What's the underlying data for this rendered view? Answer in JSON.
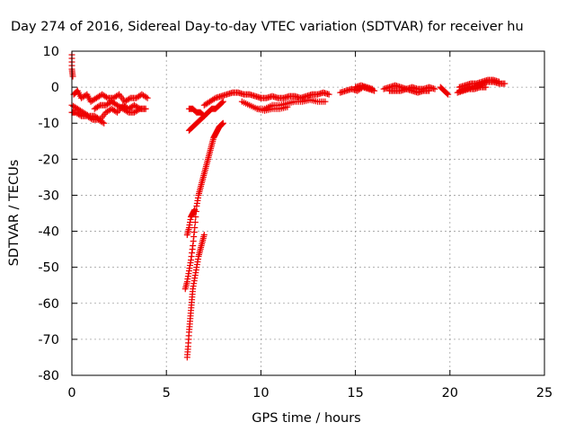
{
  "chart_data": {
    "type": "scatter",
    "title": "Day 274 of 2016, Sidereal Day-to-day VTEC variation (SDTVAR) for receiver hu",
    "xlabel": "GPS time / hours",
    "ylabel": "SDTVAR / TECUs",
    "xlim": [
      0,
      25
    ],
    "ylim": [
      -80,
      10
    ],
    "xticks": [
      0,
      5,
      10,
      15,
      20,
      25
    ],
    "yticks": [
      10,
      0,
      -10,
      -20,
      -30,
      -40,
      -50,
      -60,
      -70,
      -80
    ],
    "grid": true,
    "marker": "+",
    "color": "#ee0000",
    "series": [
      {
        "name": "SDTVAR",
        "segments": [
          {
            "x": [
              0.0,
              0.0,
              0.05
            ],
            "y": [
              9,
              5,
              3
            ]
          },
          {
            "x": [
              0.1,
              0.3,
              0.5,
              0.8,
              1.0,
              1.3,
              1.6,
              1.9,
              2.2,
              2.5,
              2.8,
              3.1,
              3.4,
              3.7,
              4.0
            ],
            "y": [
              -2,
              -1,
              -3,
              -2,
              -4,
              -3,
              -2,
              -3,
              -3,
              -2,
              -4,
              -3,
              -3,
              -2,
              -3
            ]
          },
          {
            "x": [
              0.0,
              0.3,
              0.6,
              0.9,
              1.2,
              1.5,
              1.8,
              2.1,
              2.4,
              2.7,
              3.0,
              3.3,
              3.6,
              3.9
            ],
            "y": [
              -5,
              -6,
              -7,
              -8,
              -8,
              -9,
              -7,
              -6,
              -7,
              -5,
              -6,
              -5,
              -6,
              -6
            ]
          },
          {
            "x": [
              0.0,
              0.2,
              0.5,
              0.8,
              1.1,
              1.4,
              1.7
            ],
            "y": [
              -7,
              -7,
              -8,
              -8,
              -9,
              -9,
              -10
            ]
          },
          {
            "x": [
              1.2,
              1.5,
              1.8,
              2.1,
              2.4,
              2.7,
              3.0,
              3.3,
              3.6,
              3.9
            ],
            "y": [
              -6,
              -5,
              -5,
              -4,
              -5,
              -6,
              -7,
              -7,
              -6,
              -6
            ]
          },
          {
            "x": [
              6.1,
              6.2,
              6.3,
              6.4,
              6.5
            ],
            "y": [
              -41,
              -39,
              -36,
              -35,
              -34
            ]
          },
          {
            "x": [
              6.0,
              6.1,
              6.2,
              6.3,
              6.4,
              6.5,
              6.6,
              6.7,
              6.8,
              6.9,
              7.0,
              7.1,
              7.2,
              7.3,
              7.4,
              7.5,
              7.6,
              7.7,
              7.8,
              7.9,
              8.0
            ],
            "y": [
              -56,
              -54,
              -51,
              -48,
              -44,
              -39,
              -33,
              -30,
              -28,
              -26,
              -24,
              -22,
              -20,
              -18,
              -16,
              -14,
              -13,
              -12,
              -11,
              -10.5,
              -10
            ]
          },
          {
            "x": [
              6.1,
              6.15,
              6.2,
              6.25,
              6.3,
              6.35,
              6.4,
              6.5,
              6.6,
              6.7,
              6.8,
              6.9,
              7.0
            ],
            "y": [
              -75,
              -72,
              -68,
              -65,
              -62,
              -59,
              -56,
              -53,
              -50,
              -47,
              -45,
              -43,
              -41
            ]
          },
          {
            "x": [
              6.2,
              6.4,
              6.6,
              6.8,
              7.0,
              7.2,
              7.4,
              7.6,
              7.8,
              8.0
            ],
            "y": [
              -12,
              -11,
              -10,
              -9,
              -8,
              -7,
              -6,
              -6,
              -5,
              -4
            ]
          },
          {
            "x": [
              6.2,
              6.4,
              6.6,
              6.8,
              7.0
            ],
            "y": [
              -6,
              -6,
              -7,
              -7,
              -8
            ]
          },
          {
            "x": [
              7.0,
              7.3,
              7.6,
              7.9,
              8.2,
              8.5,
              8.8,
              9.1,
              9.4,
              9.7,
              10.0
            ],
            "y": [
              -5,
              -4,
              -3,
              -2.5,
              -2,
              -1.5,
              -1.5,
              -2,
              -2,
              -2.5,
              -3
            ]
          },
          {
            "x": [
              10.0,
              10.3,
              10.6,
              10.9,
              11.2,
              11.5,
              11.8,
              12.1,
              12.4,
              12.7,
              13.0,
              13.3,
              13.6
            ],
            "y": [
              -3,
              -3,
              -2.5,
              -3,
              -3,
              -2.5,
              -2.5,
              -3,
              -2.5,
              -2,
              -2,
              -1.5,
              -2
            ]
          },
          {
            "x": [
              9.0,
              9.4,
              9.8,
              10.2,
              10.6,
              11.0,
              11.4,
              11.8,
              12.2,
              12.6,
              13.0,
              13.4
            ],
            "y": [
              -4,
              -5,
              -6,
              -6,
              -5,
              -5,
              -4.5,
              -4,
              -4,
              -3.5,
              -4,
              -4
            ]
          },
          {
            "x": [
              9.8,
              10.2,
              10.6,
              11.0,
              11.4
            ],
            "y": [
              -6,
              -6.5,
              -6,
              -6,
              -5.5
            ]
          },
          {
            "x": [
              14.2,
              14.5,
              14.8,
              15.1,
              15.4,
              15.7,
              16.0
            ],
            "y": [
              -1.5,
              -1,
              -0.5,
              -1,
              0,
              -0.5,
              -1
            ]
          },
          {
            "x": [
              15.0,
              15.3,
              15.6,
              15.9
            ],
            "y": [
              0,
              0.5,
              0,
              -0.5
            ]
          },
          {
            "x": [
              16.5,
              16.8,
              17.1,
              17.4,
              17.7,
              18.0,
              18.3,
              18.6,
              18.9,
              19.2
            ],
            "y": [
              -0.5,
              0,
              0.5,
              0,
              -0.5,
              0,
              -0.5,
              -0.5,
              0,
              -0.5
            ]
          },
          {
            "x": [
              16.8,
              17.1,
              17.4,
              17.7,
              18.0,
              18.3,
              18.6,
              18.9
            ],
            "y": [
              -1,
              -1,
              -1,
              -0.5,
              -1,
              -1.5,
              -1,
              -1
            ]
          },
          {
            "x": [
              19.5,
              19.7,
              19.9
            ],
            "y": [
              0,
              -1,
              -2
            ]
          },
          {
            "x": [
              20.5,
              20.8,
              21.1,
              21.4,
              21.7,
              22.0,
              22.3,
              22.6,
              22.9
            ],
            "y": [
              -1,
              -0.5,
              0,
              0.5,
              1,
              1.5,
              1.5,
              1,
              1
            ]
          },
          {
            "x": [
              20.5,
              20.8,
              21.1,
              21.4,
              21.7,
              22.0,
              22.3,
              22.6
            ],
            "y": [
              0,
              0.5,
              1,
              1,
              1.5,
              2,
              2,
              1.5
            ]
          },
          {
            "x": [
              20.4,
              20.7,
              21.0,
              21.3,
              21.6,
              21.9
            ],
            "y": [
              -1.5,
              -1,
              -0.5,
              -0.5,
              0,
              0
            ]
          }
        ]
      }
    ]
  }
}
